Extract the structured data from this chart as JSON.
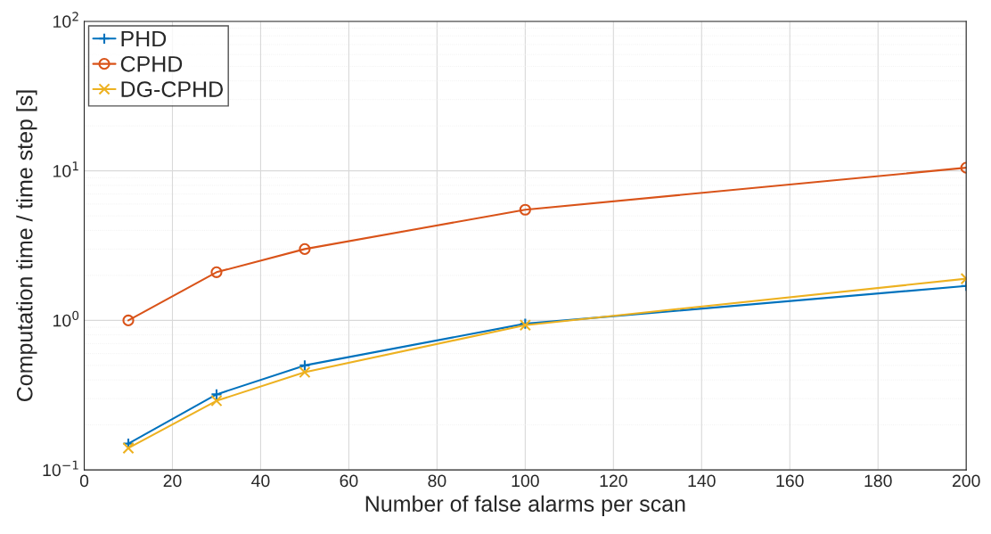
{
  "chart_data": {
    "type": "line",
    "xlabel": "Number of false alarms per scan",
    "ylabel": "Computation time / time step [s]",
    "x": [
      10,
      30,
      50,
      100,
      200
    ],
    "series": [
      {
        "name": "PHD",
        "color": "#0072bd",
        "marker": "plus",
        "values": [
          0.15,
          0.32,
          0.5,
          0.95,
          1.7
        ]
      },
      {
        "name": "CPHD",
        "color": "#d95319",
        "marker": "circle",
        "values": [
          1.0,
          2.1,
          3.0,
          5.5,
          10.5
        ]
      },
      {
        "name": "DG-CPHD",
        "color": "#edb120",
        "marker": "cross",
        "values": [
          0.14,
          0.29,
          0.45,
          0.93,
          1.9
        ]
      }
    ],
    "log": "y",
    "xlim": [
      0,
      200
    ],
    "xticks": [
      0,
      20,
      40,
      60,
      80,
      100,
      120,
      140,
      160,
      180,
      200
    ],
    "ylim": [
      0.1,
      100
    ],
    "yticks": [
      {
        "value": 0.1,
        "label": "10$^{−1}$"
      },
      {
        "value": 1,
        "label": "10$^{0}$"
      },
      {
        "value": 10,
        "label": "10$^{1}$"
      },
      {
        "value": 100,
        "label": "10$^{2}$"
      }
    ],
    "grid": true,
    "legend": "top left",
    "line_style": "solid"
  }
}
